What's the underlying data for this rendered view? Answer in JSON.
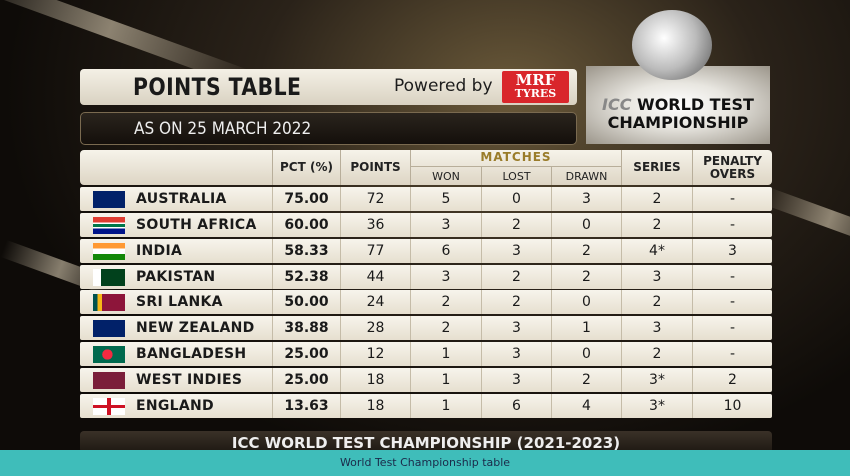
{
  "header": {
    "title": "POINTS TABLE",
    "powered_by": "Powered by",
    "sponsor_line1": "MRF",
    "sponsor_line2": "TYRES",
    "as_on": "AS ON 25 MARCH 2022"
  },
  "logo": {
    "line1_prefix": "ICC",
    "line1": "WORLD TEST",
    "line2": "CHAMPIONSHIP"
  },
  "columns": {
    "pct": "PCT (%)",
    "points": "POINTS",
    "matches": "MATCHES",
    "won": "WON",
    "lost": "LOST",
    "drawn": "DRAWN",
    "series": "SERIES",
    "penalty": "PENALTY OVERS"
  },
  "rows": [
    {
      "team": "AUSTRALIA",
      "pct": "75.00",
      "points": "72",
      "won": "5",
      "lost": "0",
      "drawn": "3",
      "series": "2",
      "penalty": "-",
      "flag": "australia"
    },
    {
      "team": "SOUTH AFRICA",
      "pct": "60.00",
      "points": "36",
      "won": "3",
      "lost": "2",
      "drawn": "0",
      "series": "2",
      "penalty": "-",
      "flag": "south-africa"
    },
    {
      "team": "INDIA",
      "pct": "58.33",
      "points": "77",
      "won": "6",
      "lost": "3",
      "drawn": "2",
      "series": "4*",
      "penalty": "3",
      "flag": "india"
    },
    {
      "team": "PAKISTAN",
      "pct": "52.38",
      "points": "44",
      "won": "3",
      "lost": "2",
      "drawn": "2",
      "series": "3",
      "penalty": "-",
      "flag": "pakistan"
    },
    {
      "team": "SRI LANKA",
      "pct": "50.00",
      "points": "24",
      "won": "2",
      "lost": "2",
      "drawn": "0",
      "series": "2",
      "penalty": "-",
      "flag": "sri-lanka"
    },
    {
      "team": "NEW ZEALAND",
      "pct": "38.88",
      "points": "28",
      "won": "2",
      "lost": "3",
      "drawn": "1",
      "series": "3",
      "penalty": "-",
      "flag": "new-zealand"
    },
    {
      "team": "BANGLADESH",
      "pct": "25.00",
      "points": "12",
      "won": "1",
      "lost": "3",
      "drawn": "0",
      "series": "2",
      "penalty": "-",
      "flag": "bangladesh"
    },
    {
      "team": "WEST INDIES",
      "pct": "25.00",
      "points": "18",
      "won": "1",
      "lost": "3",
      "drawn": "2",
      "series": "3*",
      "penalty": "2",
      "flag": "west-indies"
    },
    {
      "team": "ENGLAND",
      "pct": "13.63",
      "points": "18",
      "won": "1",
      "lost": "6",
      "drawn": "4",
      "series": "3*",
      "penalty": "10",
      "flag": "england"
    }
  ],
  "footer": "ICC WORLD TEST CHAMPIONSHIP (2021-2023)",
  "caption": "World Test Championship table",
  "colors": {
    "caption_bg": "#3fbdba",
    "sponsor": "#d9262b",
    "matches_header": "#9a7c2a"
  }
}
